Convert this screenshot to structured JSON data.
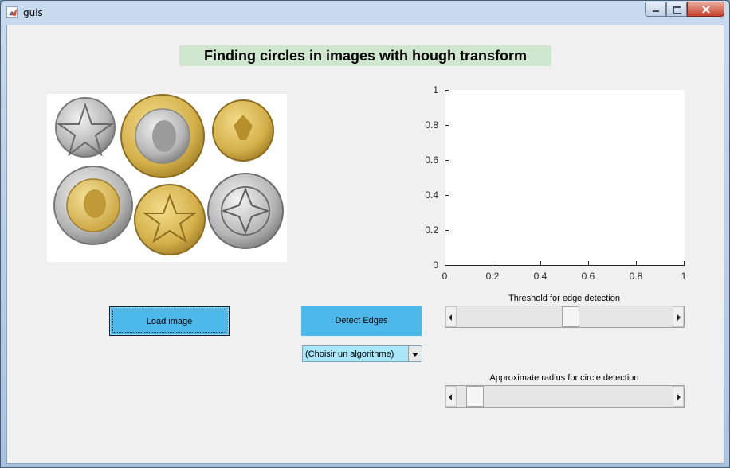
{
  "window": {
    "title": "guis"
  },
  "heading": "Finding circles in images with hough transform",
  "axes": {
    "y_ticks": [
      "0",
      "0.2",
      "0.4",
      "0.6",
      "0.8",
      "1"
    ],
    "x_ticks": [
      "0",
      "0.2",
      "0.4",
      "0.6",
      "0.8",
      "1"
    ]
  },
  "buttons": {
    "load": "Load image",
    "detect": "Detect Edges"
  },
  "algorithm_select": {
    "selected": "(Choisir un algorithme)"
  },
  "sliders": {
    "threshold": {
      "label": "Threshold for edge detection",
      "value_fraction": 0.53
    },
    "radius": {
      "label": "Approximate radius for circle detection",
      "value_fraction": 0.05
    }
  },
  "colors": {
    "heading_bg": "#cfe6cf",
    "button_bg": "#4db8ea",
    "select_bg": "#a9e6f7"
  }
}
